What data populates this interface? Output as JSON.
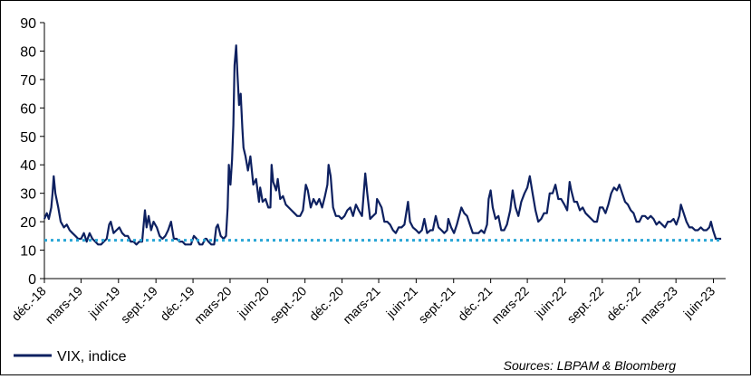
{
  "chart_data": {
    "type": "line",
    "title": "",
    "xlabel": "",
    "ylabel": "",
    "ylim": [
      0,
      90
    ],
    "yticks": [
      0,
      10,
      20,
      30,
      40,
      50,
      60,
      70,
      80,
      90
    ],
    "xlim": [
      "2018-12-01",
      "2023-07-01"
    ],
    "xticks": [
      {
        "date": "2018-12-01",
        "label": "déc.-18"
      },
      {
        "date": "2019-03-01",
        "label": "mars-19"
      },
      {
        "date": "2019-06-01",
        "label": "juin-19"
      },
      {
        "date": "2019-09-01",
        "label": "sept.-19"
      },
      {
        "date": "2019-12-01",
        "label": "déc.-19"
      },
      {
        "date": "2020-03-01",
        "label": "mars-20"
      },
      {
        "date": "2020-06-01",
        "label": "juin-20"
      },
      {
        "date": "2020-09-01",
        "label": "sept.-20"
      },
      {
        "date": "2020-12-01",
        "label": "déc.-20"
      },
      {
        "date": "2021-03-01",
        "label": "mars-21"
      },
      {
        "date": "2021-06-01",
        "label": "juin-21"
      },
      {
        "date": "2021-09-01",
        "label": "sept.-21"
      },
      {
        "date": "2021-12-01",
        "label": "déc.-21"
      },
      {
        "date": "2022-03-01",
        "label": "mars-22"
      },
      {
        "date": "2022-06-01",
        "label": "juin-22"
      },
      {
        "date": "2022-09-01",
        "label": "sept.-22"
      },
      {
        "date": "2022-12-01",
        "label": "déc.-22"
      },
      {
        "date": "2023-03-01",
        "label": "mars-23"
      },
      {
        "date": "2023-06-01",
        "label": "juin-23"
      }
    ],
    "grid": false,
    "legend": "bottom-left",
    "series": [
      {
        "name": "VIX, indice",
        "color": "#0d2060",
        "points": [
          [
            "2018-12-01",
            21
          ],
          [
            "2018-12-07",
            23
          ],
          [
            "2018-12-12",
            21
          ],
          [
            "2018-12-18",
            25
          ],
          [
            "2018-12-21",
            30
          ],
          [
            "2018-12-24",
            36
          ],
          [
            "2018-12-28",
            30
          ],
          [
            "2019-01-04",
            25
          ],
          [
            "2019-01-10",
            20
          ],
          [
            "2019-01-18",
            18
          ],
          [
            "2019-01-25",
            19
          ],
          [
            "2019-02-01",
            17
          ],
          [
            "2019-02-08",
            16
          ],
          [
            "2019-02-15",
            15
          ],
          [
            "2019-02-22",
            14
          ],
          [
            "2019-03-01",
            14
          ],
          [
            "2019-03-08",
            16
          ],
          [
            "2019-03-15",
            13
          ],
          [
            "2019-03-22",
            16
          ],
          [
            "2019-03-29",
            14
          ],
          [
            "2019-04-05",
            13
          ],
          [
            "2019-04-12",
            12
          ],
          [
            "2019-04-19",
            12
          ],
          [
            "2019-04-26",
            13
          ],
          [
            "2019-05-03",
            14
          ],
          [
            "2019-05-09",
            19
          ],
          [
            "2019-05-13",
            20
          ],
          [
            "2019-05-20",
            16
          ],
          [
            "2019-05-27",
            17
          ],
          [
            "2019-06-03",
            18
          ],
          [
            "2019-06-10",
            16
          ],
          [
            "2019-06-17",
            15
          ],
          [
            "2019-06-24",
            15
          ],
          [
            "2019-07-01",
            13
          ],
          [
            "2019-07-08",
            13
          ],
          [
            "2019-07-15",
            12
          ],
          [
            "2019-07-22",
            13
          ],
          [
            "2019-07-29",
            13
          ],
          [
            "2019-08-05",
            24
          ],
          [
            "2019-08-09",
            18
          ],
          [
            "2019-08-14",
            22
          ],
          [
            "2019-08-20",
            17
          ],
          [
            "2019-08-26",
            20
          ],
          [
            "2019-09-03",
            18
          ],
          [
            "2019-09-10",
            15
          ],
          [
            "2019-09-17",
            14
          ],
          [
            "2019-09-24",
            15
          ],
          [
            "2019-10-01",
            17
          ],
          [
            "2019-10-08",
            20
          ],
          [
            "2019-10-15",
            14
          ],
          [
            "2019-10-22",
            14
          ],
          [
            "2019-10-29",
            13
          ],
          [
            "2019-11-05",
            13
          ],
          [
            "2019-11-12",
            12
          ],
          [
            "2019-11-19",
            12
          ],
          [
            "2019-11-26",
            12
          ],
          [
            "2019-12-03",
            15
          ],
          [
            "2019-12-10",
            14
          ],
          [
            "2019-12-17",
            12
          ],
          [
            "2019-12-24",
            12
          ],
          [
            "2019-12-31",
            14
          ],
          [
            "2020-01-03",
            14
          ],
          [
            "2020-01-08",
            13
          ],
          [
            "2020-01-15",
            12
          ],
          [
            "2020-01-22",
            12
          ],
          [
            "2020-01-27",
            18
          ],
          [
            "2020-01-31",
            19
          ],
          [
            "2020-02-07",
            15
          ],
          [
            "2020-02-14",
            14
          ],
          [
            "2020-02-20",
            15
          ],
          [
            "2020-02-24",
            25
          ],
          [
            "2020-02-27",
            40
          ],
          [
            "2020-03-02",
            33
          ],
          [
            "2020-03-06",
            42
          ],
          [
            "2020-03-09",
            54
          ],
          [
            "2020-03-12",
            75
          ],
          [
            "2020-03-16",
            82
          ],
          [
            "2020-03-19",
            72
          ],
          [
            "2020-03-23",
            61
          ],
          [
            "2020-03-27",
            65
          ],
          [
            "2020-03-31",
            53
          ],
          [
            "2020-04-03",
            46
          ],
          [
            "2020-04-08",
            43
          ],
          [
            "2020-04-14",
            38
          ],
          [
            "2020-04-20",
            43
          ],
          [
            "2020-04-27",
            33
          ],
          [
            "2020-05-04",
            35
          ],
          [
            "2020-05-11",
            27
          ],
          [
            "2020-05-14",
            32
          ],
          [
            "2020-05-20",
            27
          ],
          [
            "2020-05-27",
            28
          ],
          [
            "2020-06-03",
            25
          ],
          [
            "2020-06-08",
            25
          ],
          [
            "2020-06-11",
            40
          ],
          [
            "2020-06-15",
            34
          ],
          [
            "2020-06-22",
            31
          ],
          [
            "2020-06-26",
            35
          ],
          [
            "2020-07-02",
            28
          ],
          [
            "2020-07-09",
            29
          ],
          [
            "2020-07-16",
            26
          ],
          [
            "2020-07-23",
            25
          ],
          [
            "2020-07-30",
            24
          ],
          [
            "2020-08-06",
            23
          ],
          [
            "2020-08-13",
            22
          ],
          [
            "2020-08-20",
            22
          ],
          [
            "2020-08-27",
            24
          ],
          [
            "2020-09-03",
            33
          ],
          [
            "2020-09-08",
            31
          ],
          [
            "2020-09-15",
            25
          ],
          [
            "2020-09-22",
            28
          ],
          [
            "2020-09-29",
            26
          ],
          [
            "2020-10-06",
            28
          ],
          [
            "2020-10-13",
            25
          ],
          [
            "2020-10-20",
            29
          ],
          [
            "2020-10-26",
            33
          ],
          [
            "2020-10-29",
            40
          ],
          [
            "2020-11-03",
            36
          ],
          [
            "2020-11-09",
            25
          ],
          [
            "2020-11-16",
            22
          ],
          [
            "2020-11-23",
            22
          ],
          [
            "2020-11-30",
            21
          ],
          [
            "2020-12-07",
            22
          ],
          [
            "2020-12-14",
            24
          ],
          [
            "2020-12-21",
            25
          ],
          [
            "2020-12-28",
            22
          ],
          [
            "2021-01-04",
            26
          ],
          [
            "2021-01-11",
            24
          ],
          [
            "2021-01-19",
            22
          ],
          [
            "2021-01-27",
            37
          ],
          [
            "2021-02-01",
            30
          ],
          [
            "2021-02-08",
            21
          ],
          [
            "2021-02-15",
            22
          ],
          [
            "2021-02-22",
            23
          ],
          [
            "2021-02-25",
            28
          ],
          [
            "2021-03-01",
            27
          ],
          [
            "2021-03-08",
            25
          ],
          [
            "2021-03-15",
            20
          ],
          [
            "2021-03-22",
            20
          ],
          [
            "2021-03-29",
            19
          ],
          [
            "2021-04-05",
            17
          ],
          [
            "2021-04-12",
            16
          ],
          [
            "2021-04-19",
            18
          ],
          [
            "2021-04-26",
            18
          ],
          [
            "2021-05-03",
            19
          ],
          [
            "2021-05-12",
            27
          ],
          [
            "2021-05-17",
            20
          ],
          [
            "2021-05-24",
            18
          ],
          [
            "2021-06-01",
            17
          ],
          [
            "2021-06-08",
            16
          ],
          [
            "2021-06-15",
            17
          ],
          [
            "2021-06-21",
            21
          ],
          [
            "2021-06-28",
            16
          ],
          [
            "2021-07-06",
            17
          ],
          [
            "2021-07-12",
            17
          ],
          [
            "2021-07-19",
            22
          ],
          [
            "2021-07-26",
            18
          ],
          [
            "2021-08-02",
            17
          ],
          [
            "2021-08-09",
            16
          ],
          [
            "2021-08-16",
            17
          ],
          [
            "2021-08-19",
            21
          ],
          [
            "2021-08-26",
            18
          ],
          [
            "2021-09-02",
            16
          ],
          [
            "2021-09-09",
            19
          ],
          [
            "2021-09-20",
            25
          ],
          [
            "2021-09-27",
            23
          ],
          [
            "2021-10-04",
            22
          ],
          [
            "2021-10-11",
            19
          ],
          [
            "2021-10-18",
            16
          ],
          [
            "2021-10-25",
            16
          ],
          [
            "2021-11-01",
            16
          ],
          [
            "2021-11-08",
            17
          ],
          [
            "2021-11-15",
            16
          ],
          [
            "2021-11-22",
            19
          ],
          [
            "2021-11-26",
            28
          ],
          [
            "2021-12-01",
            31
          ],
          [
            "2021-12-06",
            25
          ],
          [
            "2021-12-13",
            21
          ],
          [
            "2021-12-20",
            22
          ],
          [
            "2021-12-27",
            17
          ],
          [
            "2022-01-03",
            17
          ],
          [
            "2022-01-10",
            19
          ],
          [
            "2022-01-18",
            24
          ],
          [
            "2022-01-24",
            31
          ],
          [
            "2022-01-31",
            25
          ],
          [
            "2022-02-07",
            22
          ],
          [
            "2022-02-14",
            27
          ],
          [
            "2022-02-22",
            30
          ],
          [
            "2022-03-01",
            32
          ],
          [
            "2022-03-07",
            36
          ],
          [
            "2022-03-14",
            30
          ],
          [
            "2022-03-21",
            24
          ],
          [
            "2022-03-28",
            20
          ],
          [
            "2022-04-04",
            21
          ],
          [
            "2022-04-11",
            23
          ],
          [
            "2022-04-18",
            23
          ],
          [
            "2022-04-25",
            30
          ],
          [
            "2022-05-02",
            30
          ],
          [
            "2022-05-09",
            33
          ],
          [
            "2022-05-16",
            28
          ],
          [
            "2022-05-23",
            28
          ],
          [
            "2022-05-31",
            26
          ],
          [
            "2022-06-07",
            24
          ],
          [
            "2022-06-13",
            34
          ],
          [
            "2022-06-17",
            31
          ],
          [
            "2022-06-24",
            27
          ],
          [
            "2022-07-01",
            27
          ],
          [
            "2022-07-08",
            24
          ],
          [
            "2022-07-15",
            25
          ],
          [
            "2022-07-22",
            23
          ],
          [
            "2022-07-29",
            22
          ],
          [
            "2022-08-05",
            21
          ],
          [
            "2022-08-12",
            20
          ],
          [
            "2022-08-19",
            20
          ],
          [
            "2022-08-26",
            25
          ],
          [
            "2022-09-02",
            25
          ],
          [
            "2022-09-09",
            23
          ],
          [
            "2022-09-16",
            26
          ],
          [
            "2022-09-23",
            30
          ],
          [
            "2022-09-30",
            32
          ],
          [
            "2022-10-07",
            31
          ],
          [
            "2022-10-13",
            33
          ],
          [
            "2022-10-20",
            30
          ],
          [
            "2022-10-27",
            27
          ],
          [
            "2022-11-03",
            26
          ],
          [
            "2022-11-10",
            24
          ],
          [
            "2022-11-17",
            23
          ],
          [
            "2022-11-24",
            20
          ],
          [
            "2022-12-01",
            20
          ],
          [
            "2022-12-08",
            22
          ],
          [
            "2022-12-15",
            22
          ],
          [
            "2022-12-22",
            21
          ],
          [
            "2022-12-29",
            22
          ],
          [
            "2023-01-05",
            21
          ],
          [
            "2023-01-12",
            19
          ],
          [
            "2023-01-19",
            20
          ],
          [
            "2023-01-26",
            19
          ],
          [
            "2023-02-02",
            18
          ],
          [
            "2023-02-09",
            20
          ],
          [
            "2023-02-16",
            20
          ],
          [
            "2023-02-23",
            21
          ],
          [
            "2023-03-02",
            19
          ],
          [
            "2023-03-09",
            22
          ],
          [
            "2023-03-13",
            26
          ],
          [
            "2023-03-20",
            23
          ],
          [
            "2023-03-27",
            20
          ],
          [
            "2023-04-03",
            18
          ],
          [
            "2023-04-10",
            18
          ],
          [
            "2023-04-17",
            17
          ],
          [
            "2023-04-24",
            17
          ],
          [
            "2023-05-01",
            18
          ],
          [
            "2023-05-08",
            17
          ],
          [
            "2023-05-15",
            17
          ],
          [
            "2023-05-22",
            18
          ],
          [
            "2023-05-26",
            20
          ],
          [
            "2023-05-31",
            17
          ],
          [
            "2023-06-07",
            14
          ],
          [
            "2023-06-14",
            14
          ],
          [
            "2023-06-20",
            14
          ]
        ]
      },
      {
        "name": "",
        "color": "#2aa6d6",
        "style": "dotted",
        "points": [
          [
            "2018-12-01",
            13.5
          ],
          [
            "2023-06-20",
            13.5
          ]
        ]
      }
    ]
  },
  "legend": {
    "label": "VIX, indice",
    "color": "#0d2060"
  },
  "source": "Sources: LBPAM & Bloomberg"
}
